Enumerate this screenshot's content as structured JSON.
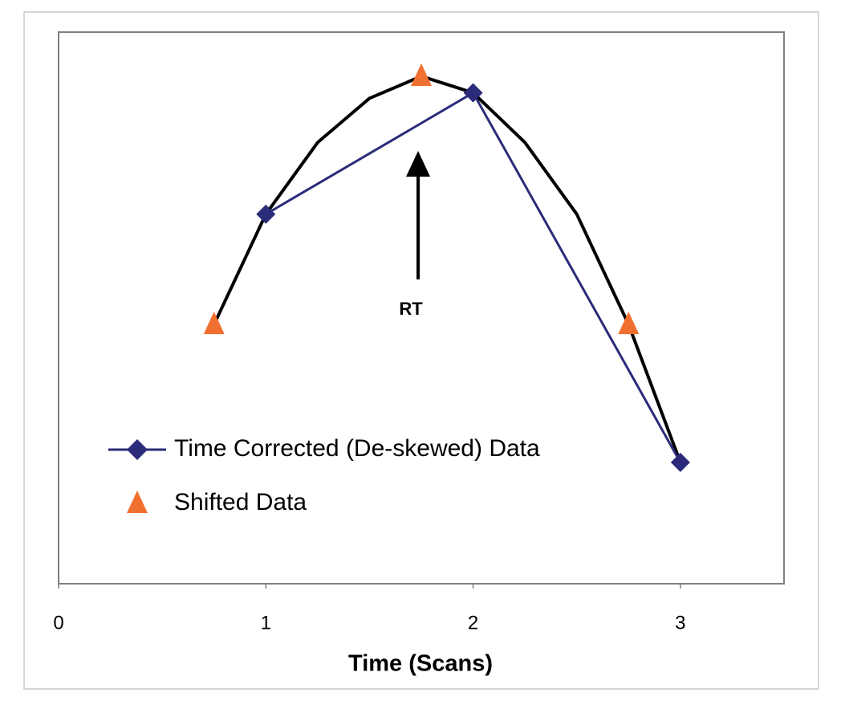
{
  "chart_data": {
    "type": "line",
    "x_label": "Time (Scans)",
    "xlim": [
      0,
      3.5
    ],
    "xticks": [
      0,
      1,
      2,
      3
    ],
    "ylim": [
      0,
      1
    ],
    "legend": "lower left",
    "series": [
      {
        "name": "Time Corrected (De-skewed) Data",
        "color": "#2b2b7a",
        "marker": "diamond",
        "line": true,
        "x": [
          1,
          2,
          3
        ],
        "values": [
          0.67,
          0.89,
          0.22
        ]
      },
      {
        "name": "Shifted Data",
        "color": "#f07030",
        "marker": "triangle",
        "line": false,
        "x": [
          0.75,
          1.75,
          2.75
        ],
        "values": [
          0.47,
          0.92,
          0.47
        ]
      }
    ],
    "curve": {
      "color": "#000000",
      "x": [
        0.75,
        1,
        1.25,
        1.5,
        1.75,
        2,
        2.25,
        2.5,
        2.75,
        3
      ],
      "values": [
        0.47,
        0.67,
        0.8,
        0.88,
        0.92,
        0.89,
        0.8,
        0.67,
        0.47,
        0.22
      ]
    },
    "annotation": {
      "text": "RT",
      "x": 1.75
    }
  }
}
